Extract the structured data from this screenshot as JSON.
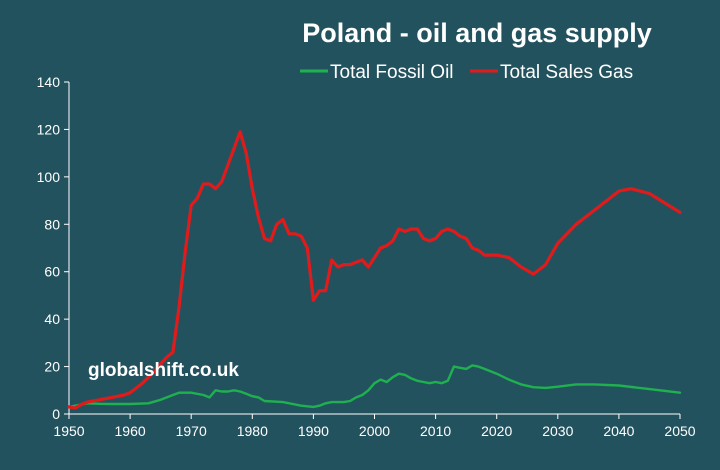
{
  "chart_data": {
    "type": "line",
    "title": "Poland - oil and gas supply",
    "xlabel": "",
    "ylabel": "",
    "xlim": [
      1950,
      2050
    ],
    "ylim": [
      0,
      140
    ],
    "x_ticks": [
      "1950",
      "1960",
      "1970",
      "1980",
      "1990",
      "2000",
      "2010",
      "2020",
      "2030",
      "2040",
      "2050"
    ],
    "y_ticks": [
      "0",
      "20",
      "40",
      "60",
      "80",
      "100",
      "120",
      "140"
    ],
    "grid": false,
    "legend_position": "top",
    "annotation": "globalshift.co.uk",
    "series": [
      {
        "name": "Total Fossil Oil",
        "color": "#1fb04f",
        "x": [
          1950,
          1951,
          1952,
          1953,
          1955,
          1957,
          1960,
          1963,
          1965,
          1967,
          1968,
          1970,
          1972,
          1973,
          1974,
          1975,
          1976,
          1977,
          1978,
          1979,
          1980,
          1981,
          1982,
          1985,
          1988,
          1990,
          1991,
          1992,
          1993,
          1995,
          1996,
          1997,
          1998,
          1999,
          2000,
          2001,
          2002,
          2003,
          2004,
          2005,
          2006,
          2007,
          2008,
          2009,
          2010,
          2011,
          2012,
          2013,
          2014,
          2015,
          2016,
          2017,
          2018,
          2020,
          2022,
          2024,
          2026,
          2028,
          2030,
          2033,
          2036,
          2040,
          2045,
          2050
        ],
        "values": [
          3,
          3.5,
          4,
          4.5,
          4.3,
          4.2,
          4.2,
          4.5,
          6,
          8,
          9,
          9,
          8,
          7,
          10,
          9.5,
          9.5,
          10,
          9.5,
          8.5,
          7.5,
          7,
          5.5,
          5,
          3.5,
          3,
          3.5,
          4.5,
          5,
          5,
          5.5,
          7,
          8,
          10,
          13,
          14.5,
          13.5,
          15.5,
          17,
          16.5,
          15,
          14,
          13.5,
          13,
          13.5,
          13,
          14,
          20,
          19.5,
          19,
          20.5,
          20,
          19,
          17,
          14.5,
          12.5,
          11.3,
          11,
          11.5,
          12.5,
          12.5,
          12,
          10.5,
          9
        ]
      },
      {
        "name": "Total Sales Gas",
        "color": "#e01b1b",
        "x": [
          1950,
          1951,
          1952,
          1953,
          1955,
          1957,
          1959,
          1960,
          1962,
          1964,
          1966,
          1967,
          1968,
          1969,
          1970,
          1971,
          1972,
          1973,
          1974,
          1975,
          1976,
          1977,
          1978,
          1979,
          1980,
          1981,
          1982,
          1983,
          1984,
          1985,
          1986,
          1987,
          1988,
          1989,
          1990,
          1991,
          1992,
          1993,
          1994,
          1995,
          1996,
          1997,
          1998,
          1999,
          2000,
          2001,
          2002,
          2003,
          2004,
          2005,
          2006,
          2007,
          2008,
          2009,
          2010,
          2011,
          2012,
          2013,
          2014,
          2015,
          2016,
          2017,
          2018,
          2020,
          2022,
          2024,
          2026,
          2028,
          2030,
          2033,
          2036,
          2040,
          2042,
          2045,
          2050
        ],
        "values": [
          3,
          2.5,
          4,
          5,
          6,
          7,
          8,
          9,
          13,
          18,
          24,
          26,
          45,
          68,
          88,
          91,
          97,
          97,
          95,
          98,
          105,
          112,
          119,
          110,
          95,
          83,
          74,
          73,
          80,
          82,
          76,
          76,
          75,
          70,
          48,
          52,
          52,
          65,
          62,
          63,
          63,
          64,
          65,
          62,
          66,
          70,
          71,
          73,
          78,
          77,
          78,
          78,
          74,
          73,
          74,
          77,
          78,
          77,
          75,
          74,
          70,
          69,
          67,
          67,
          66,
          62,
          59,
          63,
          72,
          80,
          86,
          94,
          95,
          93,
          85
        ]
      }
    ]
  }
}
